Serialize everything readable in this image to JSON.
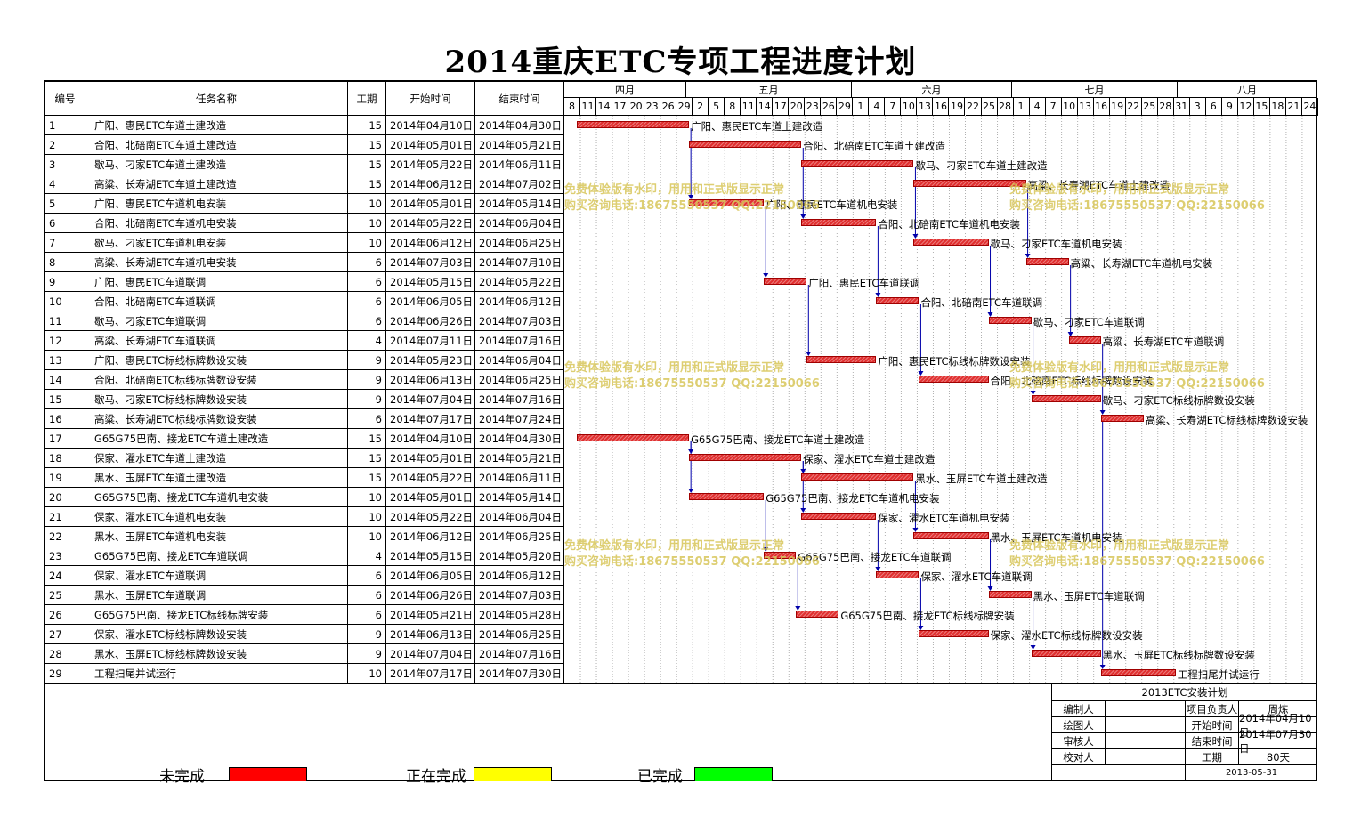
{
  "title": "2014重庆ETC专项工程进度计划",
  "headers": {
    "id": "编号",
    "name": "任务名称",
    "duration": "工期",
    "start": "开始时间",
    "end": "结束时间"
  },
  "months": [
    "四月",
    "五月",
    "六月",
    "七月",
    "八月"
  ],
  "days": [
    "8",
    "11",
    "14",
    "17",
    "20",
    "23",
    "26",
    "29",
    "2",
    "5",
    "8",
    "11",
    "14",
    "17",
    "20",
    "23",
    "26",
    "29",
    "1",
    "4",
    "7",
    "10",
    "13",
    "16",
    "19",
    "22",
    "25",
    "28",
    "1",
    "4",
    "7",
    "10",
    "13",
    "16",
    "19",
    "22",
    "25",
    "28",
    "31",
    "3",
    "6",
    "9",
    "12",
    "15",
    "18",
    "21",
    "24"
  ],
  "tasks": [
    {
      "id": "1",
      "name": "广阳、惠民ETC车道土建改造",
      "duration": "15",
      "start": "2014年04月10日",
      "end": "2014年04月30日"
    },
    {
      "id": "2",
      "name": "合阳、北碚南ETC车道土建改造",
      "duration": "15",
      "start": "2014年05月01日",
      "end": "2014年05月21日"
    },
    {
      "id": "3",
      "name": "歇马、刁家ETC车道土建改造",
      "duration": "15",
      "start": "2014年05月22日",
      "end": "2014年06月11日"
    },
    {
      "id": "4",
      "name": "高粱、长寿湖ETC车道土建改造",
      "duration": "15",
      "start": "2014年06月12日",
      "end": "2014年07月02日"
    },
    {
      "id": "5",
      "name": "广阳、惠民ETC车道机电安装",
      "duration": "10",
      "start": "2014年05月01日",
      "end": "2014年05月14日"
    },
    {
      "id": "6",
      "name": "合阳、北碚南ETC车道机电安装",
      "duration": "10",
      "start": "2014年05月22日",
      "end": "2014年06月04日"
    },
    {
      "id": "7",
      "name": "歇马、刁家ETC车道机电安装",
      "duration": "10",
      "start": "2014年06月12日",
      "end": "2014年06月25日"
    },
    {
      "id": "8",
      "name": "高粱、长寿湖ETC车道机电安装",
      "duration": "6",
      "start": "2014年07月03日",
      "end": "2014年07月10日"
    },
    {
      "id": "9",
      "name": "广阳、惠民ETC车道联调",
      "duration": "6",
      "start": "2014年05月15日",
      "end": "2014年05月22日"
    },
    {
      "id": "10",
      "name": "合阳、北碚南ETC车道联调",
      "duration": "6",
      "start": "2014年06月05日",
      "end": "2014年06月12日"
    },
    {
      "id": "11",
      "name": "歇马、刁家ETC车道联调",
      "duration": "6",
      "start": "2014年06月26日",
      "end": "2014年07月03日"
    },
    {
      "id": "12",
      "name": "高粱、长寿湖ETC车道联调",
      "duration": "4",
      "start": "2014年07月11日",
      "end": "2014年07月16日"
    },
    {
      "id": "13",
      "name": "广阳、惠民ETC标线标牌数设安装",
      "duration": "9",
      "start": "2014年05月23日",
      "end": "2014年06月04日"
    },
    {
      "id": "14",
      "name": "合阳、北碚南ETC标线标牌数设安装",
      "duration": "9",
      "start": "2014年06月13日",
      "end": "2014年06月25日"
    },
    {
      "id": "15",
      "name": "歇马、刁家ETC标线标牌数设安装",
      "duration": "9",
      "start": "2014年07月04日",
      "end": "2014年07月16日"
    },
    {
      "id": "16",
      "name": "高粱、长寿湖ETC标线标牌数设安装",
      "duration": "6",
      "start": "2014年07月17日",
      "end": "2014年07月24日"
    },
    {
      "id": "17",
      "name": "G65G75巴南、接龙ETC车道土建改造",
      "duration": "15",
      "start": "2014年04月10日",
      "end": "2014年04月30日"
    },
    {
      "id": "18",
      "name": "保家、濯水ETC车道土建改造",
      "duration": "15",
      "start": "2014年05月01日",
      "end": "2014年05月21日"
    },
    {
      "id": "19",
      "name": "黑水、玉屏ETC车道土建改造",
      "duration": "15",
      "start": "2014年05月22日",
      "end": "2014年06月11日"
    },
    {
      "id": "20",
      "name": "G65G75巴南、接龙ETC车道机电安装",
      "duration": "10",
      "start": "2014年05月01日",
      "end": "2014年05月14日"
    },
    {
      "id": "21",
      "name": "保家、濯水ETC车道机电安装",
      "duration": "10",
      "start": "2014年05月22日",
      "end": "2014年06月04日"
    },
    {
      "id": "22",
      "name": "黑水、玉屏ETC车道机电安装",
      "duration": "10",
      "start": "2014年06月12日",
      "end": "2014年06月25日"
    },
    {
      "id": "23",
      "name": "G65G75巴南、接龙ETC车道联调",
      "duration": "4",
      "start": "2014年05月15日",
      "end": "2014年05月20日"
    },
    {
      "id": "24",
      "name": "保家、濯水ETC车道联调",
      "duration": "6",
      "start": "2014年06月05日",
      "end": "2014年06月12日"
    },
    {
      "id": "25",
      "name": "黑水、玉屏ETC车道联调",
      "duration": "6",
      "start": "2014年06月26日",
      "end": "2014年07月03日"
    },
    {
      "id": "26",
      "name": "G65G75巴南、接龙ETC标线标牌安装",
      "duration": "6",
      "start": "2014年05月21日",
      "end": "2014年05月28日"
    },
    {
      "id": "27",
      "name": "保家、濯水ETC标线标牌数设安装",
      "duration": "9",
      "start": "2014年06月13日",
      "end": "2014年06月25日"
    },
    {
      "id": "28",
      "name": "黑水、玉屏ETC标线标牌数设安装",
      "duration": "9",
      "start": "2014年07月04日",
      "end": "2014年07月16日"
    },
    {
      "id": "29",
      "name": "工程扫尾并试运行",
      "duration": "10",
      "start": "2014年07月17日",
      "end": "2014年07月30日"
    }
  ],
  "watermark": {
    "line1": "免费体验版有水印，用用和正式版显示正常",
    "line2": "购买咨询电话:18675550537 QQ:22150066"
  },
  "legend": [
    {
      "label": "未完成",
      "color": "#ff0000"
    },
    {
      "label": "正在完成",
      "color": "#ffff00"
    },
    {
      "label": "已完成",
      "color": "#00ff00"
    }
  ],
  "info": {
    "plan_title": "2013ETC安装计划",
    "rows": [
      {
        "k1": "编制人",
        "v1": "",
        "k2": "项目负责人",
        "v2": "周炼"
      },
      {
        "k1": "绘图人",
        "v1": "",
        "k2": "开始时间",
        "v2": "2014年04月10日"
      },
      {
        "k1": "审核人",
        "v1": "",
        "k2": "结束时间",
        "v2": "2014年07月30日"
      },
      {
        "k1": "校对人",
        "v1": "",
        "k2": "工期",
        "v2": "80天"
      }
    ],
    "date": "2013-05-31"
  },
  "colors": {
    "bar": "#e03030",
    "arrow": "#0000aa",
    "watermark": "#d8c65a"
  }
}
